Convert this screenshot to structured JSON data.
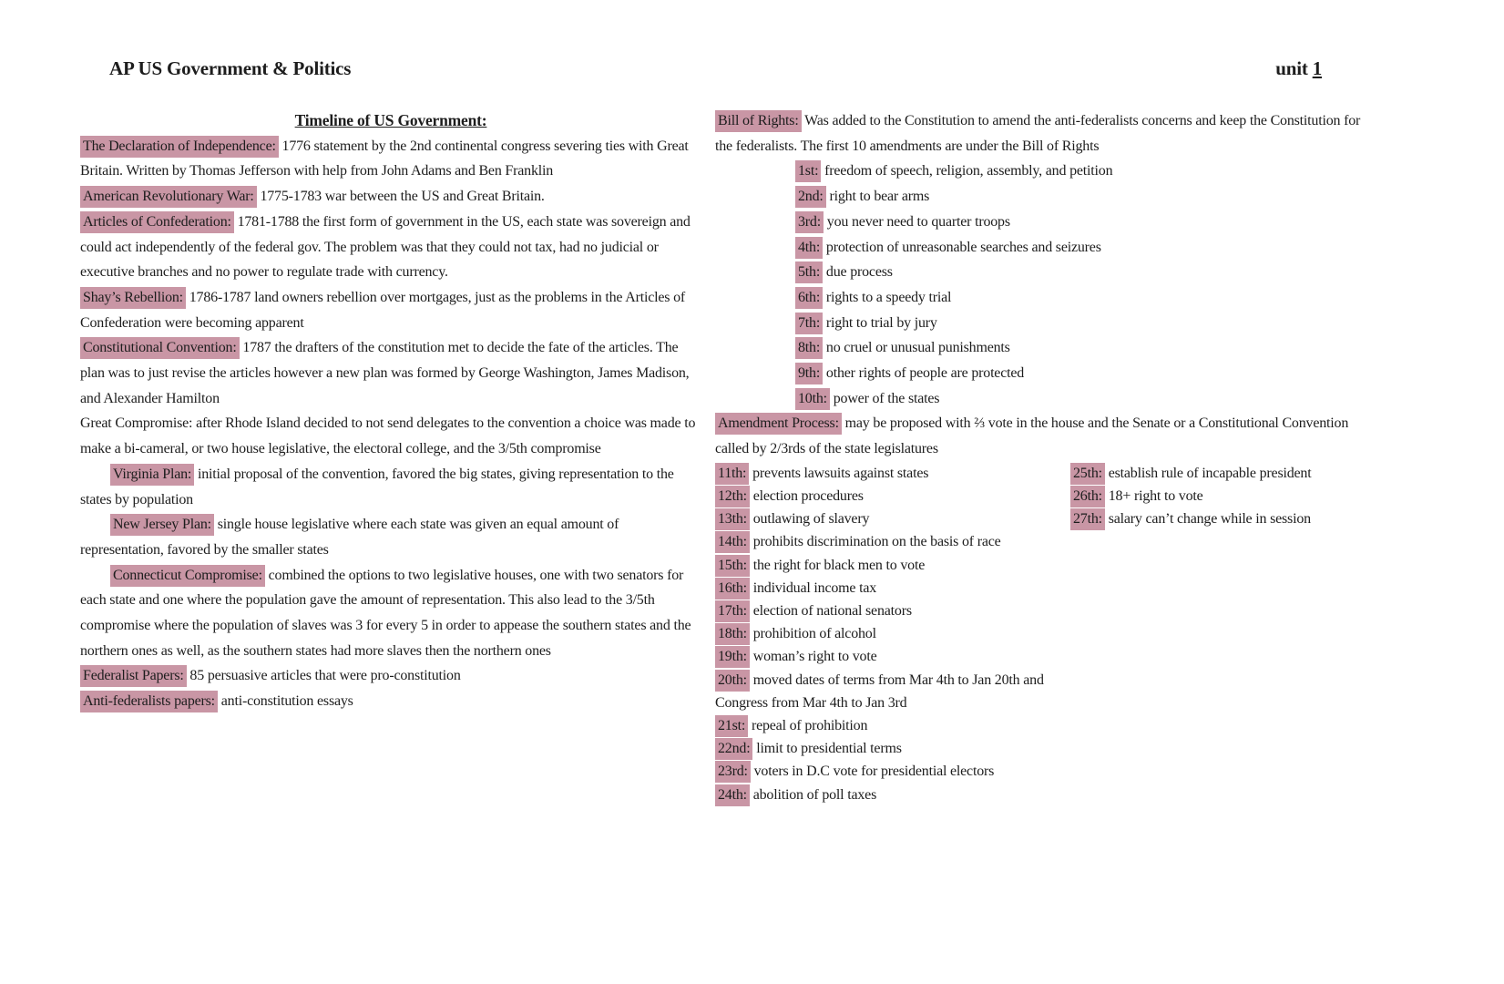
{
  "header": {
    "course_title": "AP US Government & Politics",
    "unit_prefix": "unit",
    "unit_number": "1"
  },
  "left_column": {
    "heading": "Timeline of US Government:",
    "entries": [
      {
        "term": "The Declaration of Independence:",
        "highlight": true,
        "indent": false,
        "text": "1776 statement by the 2nd continental congress severing ties with Great Britain. Written by Thomas Jefferson with help from John Adams and Ben Franklin"
      },
      {
        "term": "American Revolutionary War:",
        "highlight": true,
        "indent": false,
        "text": "1775-1783 war between the US and Great Britain."
      },
      {
        "term": "Articles of Confederation:",
        "highlight": true,
        "indent": false,
        "text": "1781-1788 the first form of government in the US, each state was sovereign and could act independently of the federal gov. The problem was that they could not tax, had no judicial or executive branches and no power to regulate trade with currency."
      },
      {
        "term": "Shay’s Rebellion:",
        "highlight": true,
        "indent": false,
        "text": "1786-1787 land owners rebellion over mortgages, just as the problems in the Articles of Confederation were becoming apparent"
      },
      {
        "term": "Constitutional Convention:",
        "highlight": true,
        "indent": false,
        "text": "1787 the drafters of the constitution met to decide the fate of the articles. The plan was to just revise the articles however a new plan was formed by George Washington, James Madison, and Alexander Hamilton"
      },
      {
        "term": "Great Compromise:",
        "highlight": false,
        "indent": false,
        "text": "after Rhode Island decided to not send delegates to the convention a choice was made to make a bi-cameral, or two house legislative, the electoral college, and the 3/5th compromise"
      },
      {
        "term": "Virginia Plan:",
        "highlight": true,
        "indent": true,
        "text": "initial proposal of the convention, favored the big states, giving representation to the states by population"
      },
      {
        "term": "New Jersey Plan:",
        "highlight": true,
        "indent": true,
        "text": "single house legislative where each state was given an equal amount of representation, favored by the smaller states"
      },
      {
        "term": "Connecticut Compromise:",
        "highlight": true,
        "indent": true,
        "text": "combined the options to two legislative houses, one with two senators for each state and one where the population gave the amount of representation. This also lead to the 3/5th compromise where the population of slaves was 3 for every 5 in order to appease the southern states and the northern ones as well, as the southern states had more slaves then the northern ones"
      },
      {
        "term": "Federalist Papers:",
        "highlight": true,
        "indent": false,
        "text": "85 persuasive articles that were pro-constitution"
      },
      {
        "term": "Anti-federalists papers:",
        "highlight": true,
        "indent": false,
        "text": "anti-constitution essays"
      }
    ]
  },
  "right_column": {
    "intro": {
      "term": "Bill of Rights:",
      "text": "Was added to the Constitution to amend the anti-federalists concerns and keep the Constitution for the federalists. The first 10 amendments are under the Bill of Rights"
    },
    "bill_amendments": [
      {
        "term": "1st:",
        "text": "freedom of speech, religion, assembly, and petition"
      },
      {
        "term": "2nd:",
        "text": "right to bear arms"
      },
      {
        "term": "3rd:",
        "text": "you never need to quarter troops"
      },
      {
        "term": "4th:",
        "text": "protection of unreasonable searches and seizures"
      },
      {
        "term": "5th:",
        "text": "due process"
      },
      {
        "term": "6th:",
        "text": "rights to a speedy trial"
      },
      {
        "term": "7th:",
        "text": "right to trial by jury"
      },
      {
        "term": "8th:",
        "text": "no cruel or unusual punishments"
      },
      {
        "term": "9th:",
        "text": "other rights of people are protected"
      },
      {
        "term": "10th:",
        "text": "power of the states"
      }
    ],
    "amendment_process": {
      "term": "Amendment Process:",
      "text": "may be proposed with ⅔ vote in the house and the Senate or a Constitutional Convention called by 2/3rds of the state legislatures"
    },
    "amendments_left": [
      {
        "term": "11th:",
        "text": "prevents lawsuits against states"
      },
      {
        "term": "12th:",
        "text": "election procedures"
      },
      {
        "term": "13th:",
        "text": "outlawing of slavery"
      },
      {
        "term": "14th:",
        "text": "prohibits discrimination on the basis of race"
      },
      {
        "term": "15th:",
        "text": "the right for black men to vote"
      },
      {
        "term": "16th:",
        "text": "individual income tax"
      },
      {
        "term": "17th:",
        "text": "election of national senators"
      },
      {
        "term": "18th:",
        "text": "prohibition of alcohol"
      },
      {
        "term": "19th:",
        "text": "woman’s right to vote"
      },
      {
        "term": "20th:",
        "text": "moved dates of terms from Mar 4th to Jan 20th and Congress from Mar 4th to Jan 3rd"
      },
      {
        "term": "21st:",
        "text": "repeal of prohibition"
      },
      {
        "term": "22nd:",
        "text": "limit to presidential terms"
      },
      {
        "term": "23rd:",
        "text": "voters in D.C vote for presidential electors"
      },
      {
        "term": "24th:",
        "text": "abolition of poll taxes"
      }
    ],
    "amendments_right": [
      {
        "term": "25th:",
        "text": "establish rule of incapable president"
      },
      {
        "term": "26th:",
        "text": "18+ right to vote"
      },
      {
        "term": "27th:",
        "text": "salary can’t change while in session"
      }
    ]
  },
  "colors": {
    "highlight": "#c996a5",
    "text": "#1d1d1d",
    "page_background": "#ffffff"
  }
}
